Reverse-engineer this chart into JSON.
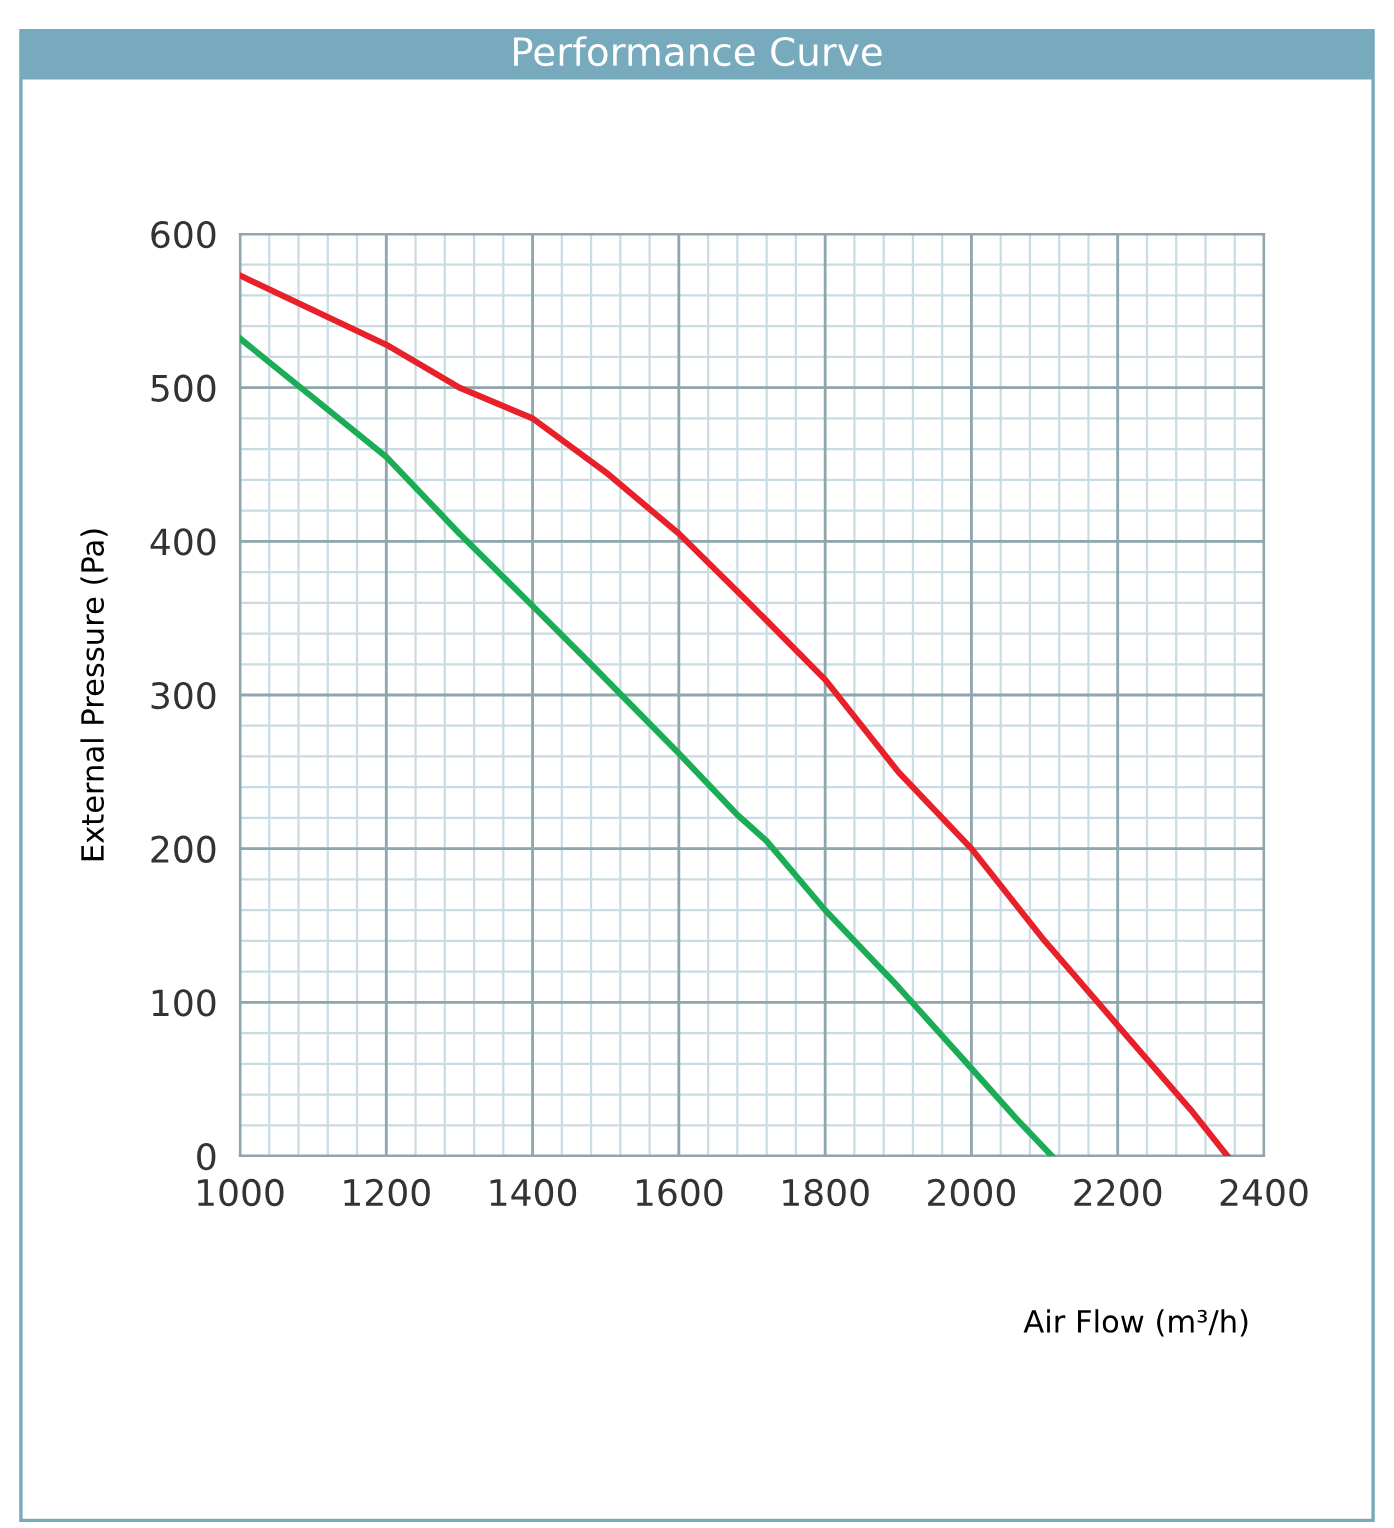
{
  "chart_data": {
    "type": "line",
    "title": "Performance Curve",
    "xlabel": "Air Flow (m³/h)",
    "ylabel": "External Pressure (Pa)",
    "series": [
      {
        "color": "#1aad55",
        "x": [
          1000,
          1200,
          1300,
          1400,
          1480,
          1600,
          1680,
          1720,
          1800,
          1900,
          2000,
          2060,
          2110
        ],
        "values": [
          532,
          455,
          405,
          358,
          320,
          262,
          222,
          205,
          160,
          110,
          57,
          25,
          0
        ]
      },
      {
        "color": "#e8202a",
        "x": [
          1000,
          1200,
          1300,
          1400,
          1500,
          1600,
          1700,
          1800,
          1900,
          2000,
          2100,
          2200,
          2300,
          2350
        ],
        "values": [
          573,
          528,
          500,
          480,
          445,
          405,
          358,
          310,
          250,
          200,
          140,
          85,
          30,
          0
        ]
      }
    ],
    "xlim": [
      1000,
      2400
    ],
    "xticks": [
      1000,
      1200,
      1400,
      1600,
      1800,
      2000,
      2200,
      2400
    ],
    "ylim": [
      0,
      600
    ],
    "yticks": [
      0,
      100,
      200,
      300,
      400,
      500,
      600
    ],
    "grid": true,
    "marker": "none",
    "line_style": "solid"
  }
}
